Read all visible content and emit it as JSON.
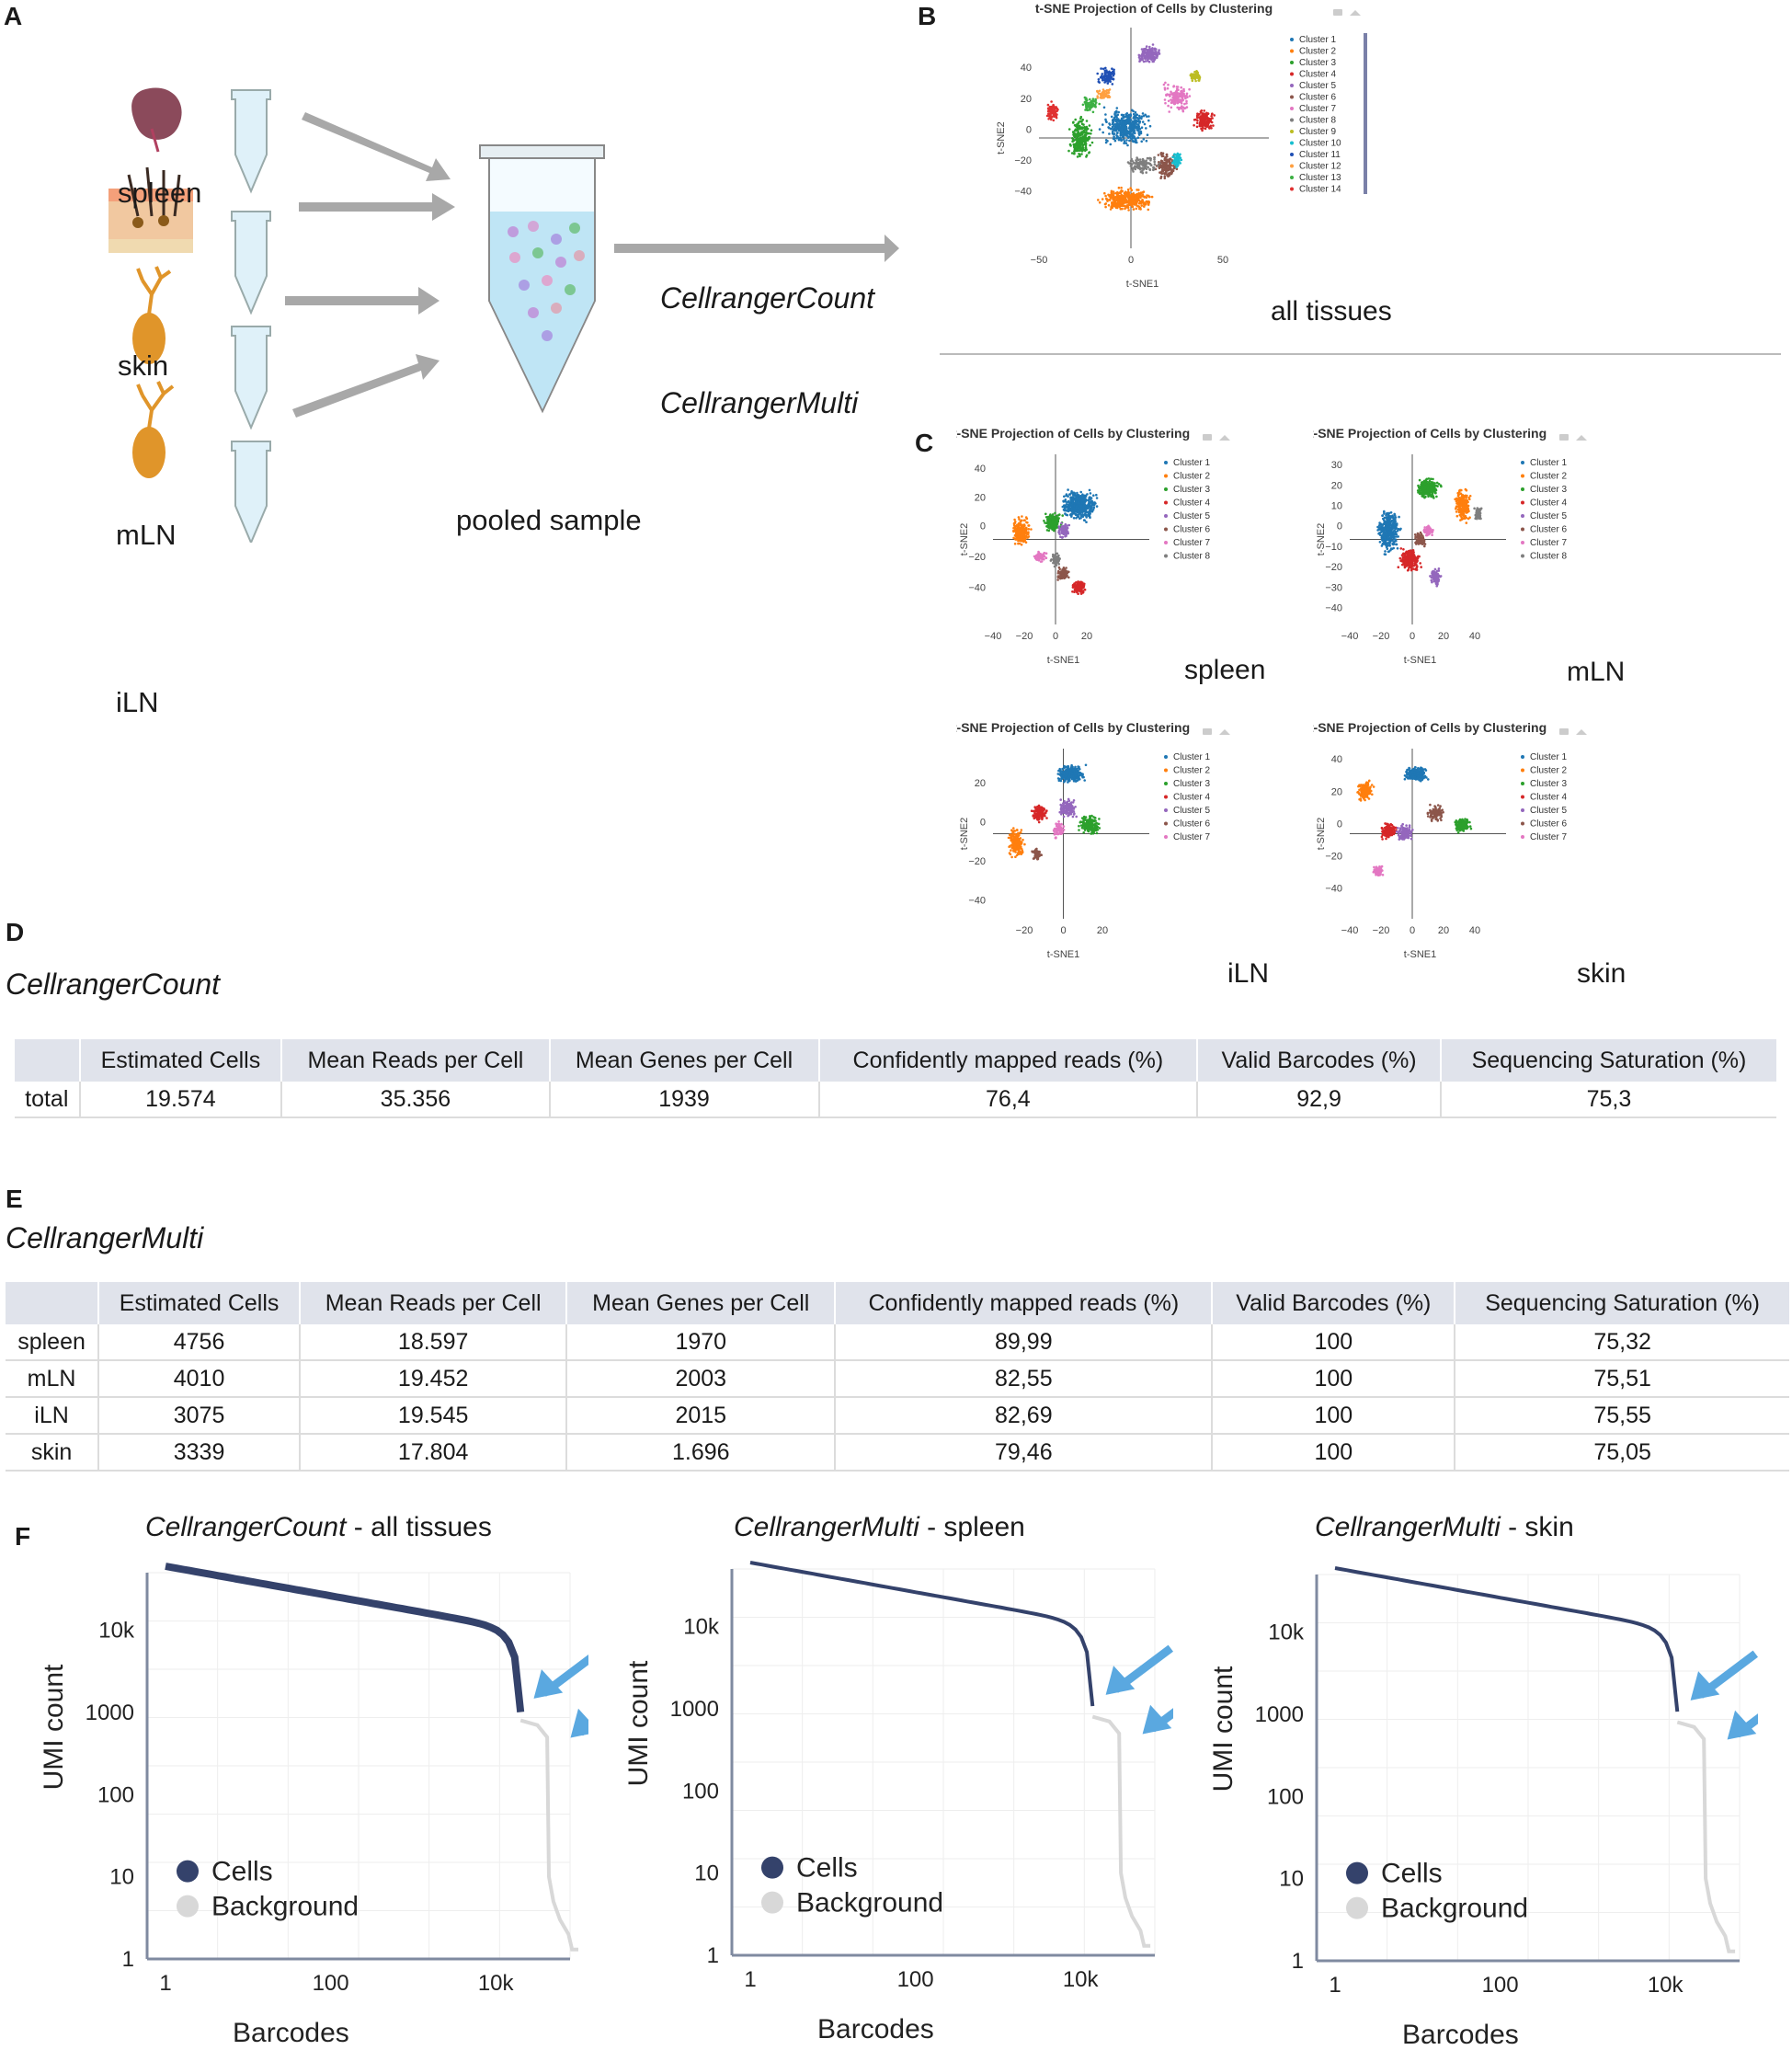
{
  "panels": {
    "A": "A",
    "B": "B",
    "C": "C",
    "D": "D",
    "E": "E",
    "F": "F"
  },
  "panelA": {
    "tissues": [
      "spleen",
      "skin",
      "mLN",
      "iLN"
    ],
    "pooled_label": "pooled sample",
    "method1": "CellrangerCount",
    "method2": "CellrangerMulti"
  },
  "panelB": {
    "title": "t-SNE Projection of Cells by Clustering",
    "caption": "all tissues",
    "xlabel": "t-SNE1",
    "ylabel": "t-SNE2",
    "xticks": [
      "−50",
      "0",
      "50"
    ],
    "yticks": [
      "40",
      "20",
      "0",
      "−20",
      "−40"
    ],
    "clusters": [
      "Cluster 1",
      "Cluster 2",
      "Cluster 3",
      "Cluster 4",
      "Cluster 5",
      "Cluster 6",
      "Cluster 7",
      "Cluster 8",
      "Cluster 9",
      "Cluster 10",
      "Cluster 11",
      "Cluster 12",
      "Cluster 13",
      "Cluster 14"
    ]
  },
  "panelC": [
    {
      "caption": "spleen",
      "title": "t-SNE Projection of Cells by Clustering",
      "clusters": [
        "Cluster 1",
        "Cluster 2",
        "Cluster 3",
        "Cluster 4",
        "Cluster 5",
        "Cluster 6",
        "Cluster 7",
        "Cluster 8"
      ],
      "xticks": [
        "−40",
        "−20",
        "0",
        "20"
      ],
      "yticks": [
        "40",
        "20",
        "0",
        "−20",
        "−40"
      ]
    },
    {
      "caption": "mLN",
      "title": "t-SNE Projection of Cells by Clustering",
      "clusters": [
        "Cluster 1",
        "Cluster 2",
        "Cluster 3",
        "Cluster 4",
        "Cluster 5",
        "Cluster 6",
        "Cluster 7",
        "Cluster 8"
      ],
      "xticks": [
        "−40",
        "−20",
        "0",
        "20",
        "40"
      ],
      "yticks": [
        "30",
        "20",
        "10",
        "0",
        "−10",
        "−20",
        "−30",
        "−40"
      ]
    },
    {
      "caption": "iLN",
      "title": "t-SNE Projection of Cells by Clustering",
      "clusters": [
        "Cluster 1",
        "Cluster 2",
        "Cluster 3",
        "Cluster 4",
        "Cluster 5",
        "Cluster 6",
        "Cluster 7"
      ],
      "xticks": [
        "−20",
        "0",
        "20"
      ],
      "yticks": [
        "20",
        "0",
        "−20",
        "−40"
      ]
    },
    {
      "caption": "skin",
      "title": "t-SNE Projection of Cells by Clustering",
      "clusters": [
        "Cluster 1",
        "Cluster 2",
        "Cluster 3",
        "Cluster 4",
        "Cluster 5",
        "Cluster 6",
        "Cluster 7"
      ],
      "xticks": [
        "−40",
        "−20",
        "0",
        "20",
        "40"
      ],
      "yticks": [
        "40",
        "20",
        "0",
        "−20",
        "−40"
      ]
    }
  ],
  "colors": [
    "#1f77b4",
    "#ff7f0e",
    "#2ca02c",
    "#d62728",
    "#9467bd",
    "#8c564b",
    "#e377c2",
    "#7f7f7f",
    "#bcbd22",
    "#17becf",
    "#1f4fb4",
    "#ffa040",
    "#3cb043",
    "#e03030"
  ],
  "tableD": {
    "method": "CellrangerCount",
    "headers": [
      "",
      "Estimated Cells",
      "Mean Reads per Cell",
      "Mean Genes per Cell",
      "Confidently mapped reads (%)",
      "Valid Barcodes (%)",
      "Sequencing Saturation (%)"
    ],
    "rows": [
      [
        "total",
        "19.574",
        "35.356",
        "1939",
        "76,4",
        "92,9",
        "75,3"
      ]
    ]
  },
  "tableE": {
    "method": "CellrangerMulti",
    "headers": [
      "",
      "Estimated Cells",
      "Mean Reads per Cell",
      "Mean Genes per Cell",
      "Confidently mapped reads (%)",
      "Valid Barcodes (%)",
      "Sequencing Saturation (%)"
    ],
    "rows": [
      [
        "spleen",
        "4756",
        "18.597",
        "1970",
        "89,99",
        "100",
        "75,32"
      ],
      [
        "mLN",
        "4010",
        "19.452",
        "2003",
        "82,55",
        "100",
        "75,51"
      ],
      [
        "iLN",
        "3075",
        "19.545",
        "2015",
        "82,69",
        "100",
        "75,55"
      ],
      [
        "skin",
        "3339",
        "17.804",
        "1.696",
        "79,46",
        "100",
        "75,05"
      ]
    ]
  },
  "chart_data": [
    {
      "type": "line",
      "title_italic": "CellrangerCount",
      "title_rest": " - all tissues",
      "xlabel": "Barcodes",
      "ylabel": "UMI count",
      "xticks": [
        "1",
        "100",
        "10k"
      ],
      "yticks": [
        "10k",
        "1000",
        "100",
        "10",
        "1"
      ],
      "legend": [
        "Cells",
        "Background"
      ],
      "cell_color": "#34426b",
      "bg_color": "#d8d8d8"
    },
    {
      "type": "line",
      "title_italic": "CellrangerMulti",
      "title_rest": " - spleen",
      "xlabel": "Barcodes",
      "ylabel": "UMI count",
      "xticks": [
        "1",
        "100",
        "10k"
      ],
      "yticks": [
        "10k",
        "1000",
        "100",
        "10",
        "1"
      ],
      "legend": [
        "Cells",
        "Background"
      ],
      "cell_color": "#34426b",
      "bg_color": "#d8d8d8"
    },
    {
      "type": "line",
      "title_italic": "CellrangerMulti",
      "title_rest": " - skin",
      "xlabel": "Barcodes",
      "ylabel": "UMI count",
      "xticks": [
        "1",
        "100",
        "10k"
      ],
      "yticks": [
        "10k",
        "1000",
        "100",
        "10",
        "1"
      ],
      "legend": [
        "Cells",
        "Background"
      ],
      "cell_color": "#34426b",
      "bg_color": "#d8d8d8"
    }
  ]
}
